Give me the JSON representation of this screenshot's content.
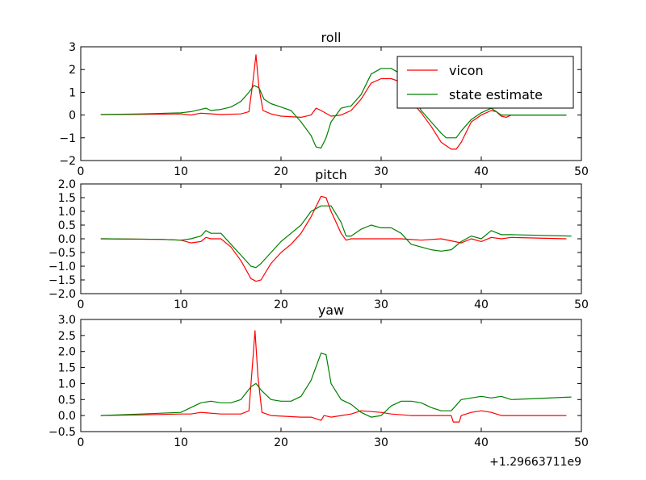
{
  "chart_data": [
    {
      "type": "line",
      "title": "roll",
      "xlim": [
        0,
        50
      ],
      "ylim": [
        -2,
        3
      ],
      "xticks": [
        "0",
        "10",
        "20",
        "30",
        "40",
        "50"
      ],
      "yticks": [
        "−2",
        "−1",
        "0",
        "1",
        "2",
        "3"
      ],
      "legend": {
        "placement": "top-right",
        "entries": [
          "vicon",
          "state estimate"
        ]
      },
      "series": [
        {
          "name": "vicon",
          "color": "#ff0000",
          "points": [
            [
              2,
              0.02
            ],
            [
              6,
              0.03
            ],
            [
              10,
              0.05
            ],
            [
              11,
              0.0
            ],
            [
              12,
              0.08
            ],
            [
              14,
              0.02
            ],
            [
              16,
              0.05
            ],
            [
              16.8,
              0.15
            ],
            [
              17.2,
              1.5
            ],
            [
              17.5,
              2.65
            ],
            [
              17.8,
              1.2
            ],
            [
              18.2,
              0.2
            ],
            [
              19,
              0.05
            ],
            [
              20,
              -0.05
            ],
            [
              22,
              -0.1
            ],
            [
              23,
              0.0
            ],
            [
              23.5,
              0.3
            ],
            [
              24,
              0.2
            ],
            [
              25,
              -0.05
            ],
            [
              26,
              0.0
            ],
            [
              27,
              0.2
            ],
            [
              28,
              0.7
            ],
            [
              29,
              1.4
            ],
            [
              30,
              1.6
            ],
            [
              31,
              1.6
            ],
            [
              32,
              1.45
            ],
            [
              33,
              0.6
            ],
            [
              34,
              0.1
            ],
            [
              35,
              -0.5
            ],
            [
              36,
              -1.2
            ],
            [
              37,
              -1.5
            ],
            [
              37.5,
              -1.5
            ],
            [
              38,
              -1.2
            ],
            [
              39,
              -0.3
            ],
            [
              40,
              0.0
            ],
            [
              41,
              0.2
            ],
            [
              41.5,
              0.15
            ],
            [
              42,
              -0.05
            ],
            [
              42.5,
              -0.1
            ],
            [
              43,
              0.0
            ],
            [
              48.5,
              0.0
            ]
          ]
        },
        {
          "name": "state estimate",
          "color": "#008000",
          "points": [
            [
              2,
              0.02
            ],
            [
              6,
              0.05
            ],
            [
              10,
              0.1
            ],
            [
              11,
              0.15
            ],
            [
              12,
              0.25
            ],
            [
              12.5,
              0.3
            ],
            [
              13,
              0.2
            ],
            [
              14,
              0.25
            ],
            [
              15,
              0.35
            ],
            [
              16,
              0.6
            ],
            [
              16.8,
              1.0
            ],
            [
              17.3,
              1.3
            ],
            [
              17.8,
              1.2
            ],
            [
              18.3,
              0.7
            ],
            [
              19,
              0.5
            ],
            [
              20,
              0.35
            ],
            [
              21,
              0.2
            ],
            [
              22,
              -0.3
            ],
            [
              23,
              -0.9
            ],
            [
              23.5,
              -1.4
            ],
            [
              24,
              -1.45
            ],
            [
              24.5,
              -1.0
            ],
            [
              25,
              -0.3
            ],
            [
              26,
              0.3
            ],
            [
              27,
              0.4
            ],
            [
              28,
              0.9
            ],
            [
              29,
              1.8
            ],
            [
              30,
              2.05
            ],
            [
              31,
              2.05
            ],
            [
              32,
              1.8
            ],
            [
              33,
              1.0
            ],
            [
              34,
              0.2
            ],
            [
              35,
              -0.3
            ],
            [
              36,
              -0.8
            ],
            [
              36.5,
              -1.0
            ],
            [
              37.5,
              -1.0
            ],
            [
              38,
              -0.7
            ],
            [
              39,
              -0.2
            ],
            [
              40,
              0.1
            ],
            [
              41,
              0.3
            ],
            [
              42,
              0.0
            ],
            [
              43,
              0.0
            ],
            [
              48.5,
              0.0
            ]
          ]
        }
      ]
    },
    {
      "type": "line",
      "title": "pitch",
      "xlim": [
        0,
        50
      ],
      "ylim": [
        -2,
        2
      ],
      "xticks": [
        "0",
        "10",
        "20",
        "30",
        "40",
        "50"
      ],
      "yticks": [
        "−2.0",
        "−1.5",
        "−1.0",
        "−0.5",
        "0.0",
        "0.5",
        "1.0",
        "1.5",
        "2.0"
      ],
      "series": [
        {
          "name": "vicon",
          "color": "#ff0000",
          "points": [
            [
              2,
              0.0
            ],
            [
              8,
              -0.02
            ],
            [
              10,
              -0.05
            ],
            [
              11,
              -0.15
            ],
            [
              12,
              -0.1
            ],
            [
              12.5,
              0.05
            ],
            [
              13,
              0.0
            ],
            [
              14,
              0.0
            ],
            [
              15,
              -0.3
            ],
            [
              16,
              -0.8
            ],
            [
              17,
              -1.45
            ],
            [
              17.5,
              -1.55
            ],
            [
              18,
              -1.5
            ],
            [
              19,
              -0.9
            ],
            [
              20,
              -0.5
            ],
            [
              21,
              -0.2
            ],
            [
              22,
              0.2
            ],
            [
              23,
              0.8
            ],
            [
              24,
              1.55
            ],
            [
              24.5,
              1.5
            ],
            [
              25,
              1.0
            ],
            [
              26,
              0.2
            ],
            [
              26.5,
              -0.05
            ],
            [
              27,
              0.0
            ],
            [
              30,
              0.0
            ],
            [
              31,
              0.0
            ],
            [
              32,
              0.0
            ],
            [
              34,
              -0.05
            ],
            [
              36,
              0.0
            ],
            [
              38,
              -0.15
            ],
            [
              39,
              0.0
            ],
            [
              40,
              -0.1
            ],
            [
              41,
              0.05
            ],
            [
              42,
              0.0
            ],
            [
              43,
              0.05
            ],
            [
              48.5,
              0.0
            ]
          ]
        },
        {
          "name": "state estimate",
          "color": "#008000",
          "points": [
            [
              2,
              0.0
            ],
            [
              8,
              -0.02
            ],
            [
              10,
              -0.05
            ],
            [
              11,
              0.0
            ],
            [
              12,
              0.1
            ],
            [
              12.5,
              0.3
            ],
            [
              13,
              0.2
            ],
            [
              14,
              0.2
            ],
            [
              15,
              -0.2
            ],
            [
              16,
              -0.6
            ],
            [
              17,
              -1.0
            ],
            [
              17.5,
              -1.05
            ],
            [
              18,
              -0.9
            ],
            [
              19,
              -0.5
            ],
            [
              20,
              -0.1
            ],
            [
              21,
              0.2
            ],
            [
              22,
              0.5
            ],
            [
              23,
              1.0
            ],
            [
              24,
              1.2
            ],
            [
              25,
              1.2
            ],
            [
              26,
              0.6
            ],
            [
              26.5,
              0.1
            ],
            [
              27,
              0.1
            ],
            [
              28,
              0.35
            ],
            [
              29,
              0.5
            ],
            [
              30,
              0.4
            ],
            [
              31,
              0.4
            ],
            [
              32,
              0.2
            ],
            [
              33,
              -0.2
            ],
            [
              35,
              -0.4
            ],
            [
              36,
              -0.45
            ],
            [
              37,
              -0.4
            ],
            [
              38,
              -0.1
            ],
            [
              39,
              0.1
            ],
            [
              40,
              0.0
            ],
            [
              41,
              0.3
            ],
            [
              42,
              0.15
            ],
            [
              43,
              0.15
            ],
            [
              49,
              0.1
            ]
          ]
        }
      ]
    },
    {
      "type": "line",
      "title": "yaw",
      "xlim": [
        0,
        50
      ],
      "ylim": [
        -0.5,
        3
      ],
      "xticks": [
        "0",
        "10",
        "20",
        "30",
        "40",
        "50"
      ],
      "yticks": [
        "−0.5",
        "0.0",
        "0.5",
        "1.0",
        "1.5",
        "2.0",
        "2.5",
        "3.0"
      ],
      "x_offset_label": "+1.29663711e9",
      "series": [
        {
          "name": "vicon",
          "color": "#ff0000",
          "points": [
            [
              2,
              0.0
            ],
            [
              6,
              0.02
            ],
            [
              10,
              0.05
            ],
            [
              11,
              0.05
            ],
            [
              12,
              0.1
            ],
            [
              14,
              0.05
            ],
            [
              16,
              0.05
            ],
            [
              16.8,
              0.15
            ],
            [
              17.2,
              1.8
            ],
            [
              17.4,
              2.65
            ],
            [
              17.7,
              1.2
            ],
            [
              18.1,
              0.1
            ],
            [
              19,
              0.0
            ],
            [
              22,
              -0.05
            ],
            [
              23,
              -0.05
            ],
            [
              24,
              -0.15
            ],
            [
              24.3,
              0.0
            ],
            [
              25,
              -0.05
            ],
            [
              26,
              0.0
            ],
            [
              27,
              0.05
            ],
            [
              28,
              0.15
            ],
            [
              30,
              0.1
            ],
            [
              31,
              0.05
            ],
            [
              33,
              0.0
            ],
            [
              36,
              0.0
            ],
            [
              37,
              0.0
            ],
            [
              37.2,
              -0.2
            ],
            [
              37.8,
              -0.2
            ],
            [
              38,
              0.0
            ],
            [
              39,
              0.1
            ],
            [
              40,
              0.15
            ],
            [
              41,
              0.1
            ],
            [
              42,
              0.0
            ],
            [
              42.5,
              0.0
            ],
            [
              43,
              0.0
            ],
            [
              48.5,
              0.0
            ]
          ]
        },
        {
          "name": "state estimate",
          "color": "#008000",
          "points": [
            [
              2,
              0.0
            ],
            [
              6,
              0.05
            ],
            [
              10,
              0.1
            ],
            [
              11,
              0.25
            ],
            [
              12,
              0.4
            ],
            [
              13,
              0.45
            ],
            [
              14,
              0.4
            ],
            [
              15,
              0.4
            ],
            [
              16,
              0.5
            ],
            [
              17,
              0.9
            ],
            [
              17.5,
              1.0
            ],
            [
              18,
              0.8
            ],
            [
              19,
              0.5
            ],
            [
              20,
              0.45
            ],
            [
              21,
              0.45
            ],
            [
              22,
              0.6
            ],
            [
              23,
              1.1
            ],
            [
              24,
              1.95
            ],
            [
              24.5,
              1.9
            ],
            [
              25,
              1.0
            ],
            [
              26,
              0.5
            ],
            [
              27,
              0.35
            ],
            [
              28,
              0.1
            ],
            [
              29,
              -0.05
            ],
            [
              30,
              0.0
            ],
            [
              31,
              0.3
            ],
            [
              32,
              0.45
            ],
            [
              33,
              0.45
            ],
            [
              34,
              0.4
            ],
            [
              35,
              0.25
            ],
            [
              36,
              0.15
            ],
            [
              37,
              0.15
            ],
            [
              38,
              0.5
            ],
            [
              39,
              0.55
            ],
            [
              40,
              0.6
            ],
            [
              41,
              0.55
            ],
            [
              42,
              0.6
            ],
            [
              43,
              0.5
            ],
            [
              49,
              0.58
            ]
          ]
        }
      ]
    }
  ]
}
